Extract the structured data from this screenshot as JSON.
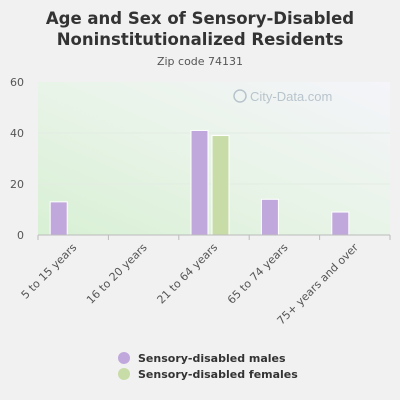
{
  "chart_data": {
    "type": "bar",
    "title": "Age and Sex of Sensory-Disabled Noninstitutionalized Residents",
    "subtitle": "Zip code 74131",
    "categories": [
      "5 to 15 years",
      "16 to 20 years",
      "21 to 64 years",
      "65 to 74 years",
      "75+ years and over"
    ],
    "series": [
      {
        "name": "Sensory-disabled males",
        "color": "#c0a8dc",
        "values": [
          13,
          0,
          41,
          14,
          9
        ]
      },
      {
        "name": "Sensory-disabled females",
        "color": "#c8dca8",
        "values": [
          0,
          0,
          39,
          0,
          0
        ]
      }
    ],
    "ylim": [
      0,
      60
    ],
    "yticks": [
      "0",
      "20",
      "40",
      "60"
    ],
    "xlabel": "",
    "ylabel": "",
    "grid": true,
    "legend_position": "bottom",
    "watermark": "City-Data.com"
  }
}
